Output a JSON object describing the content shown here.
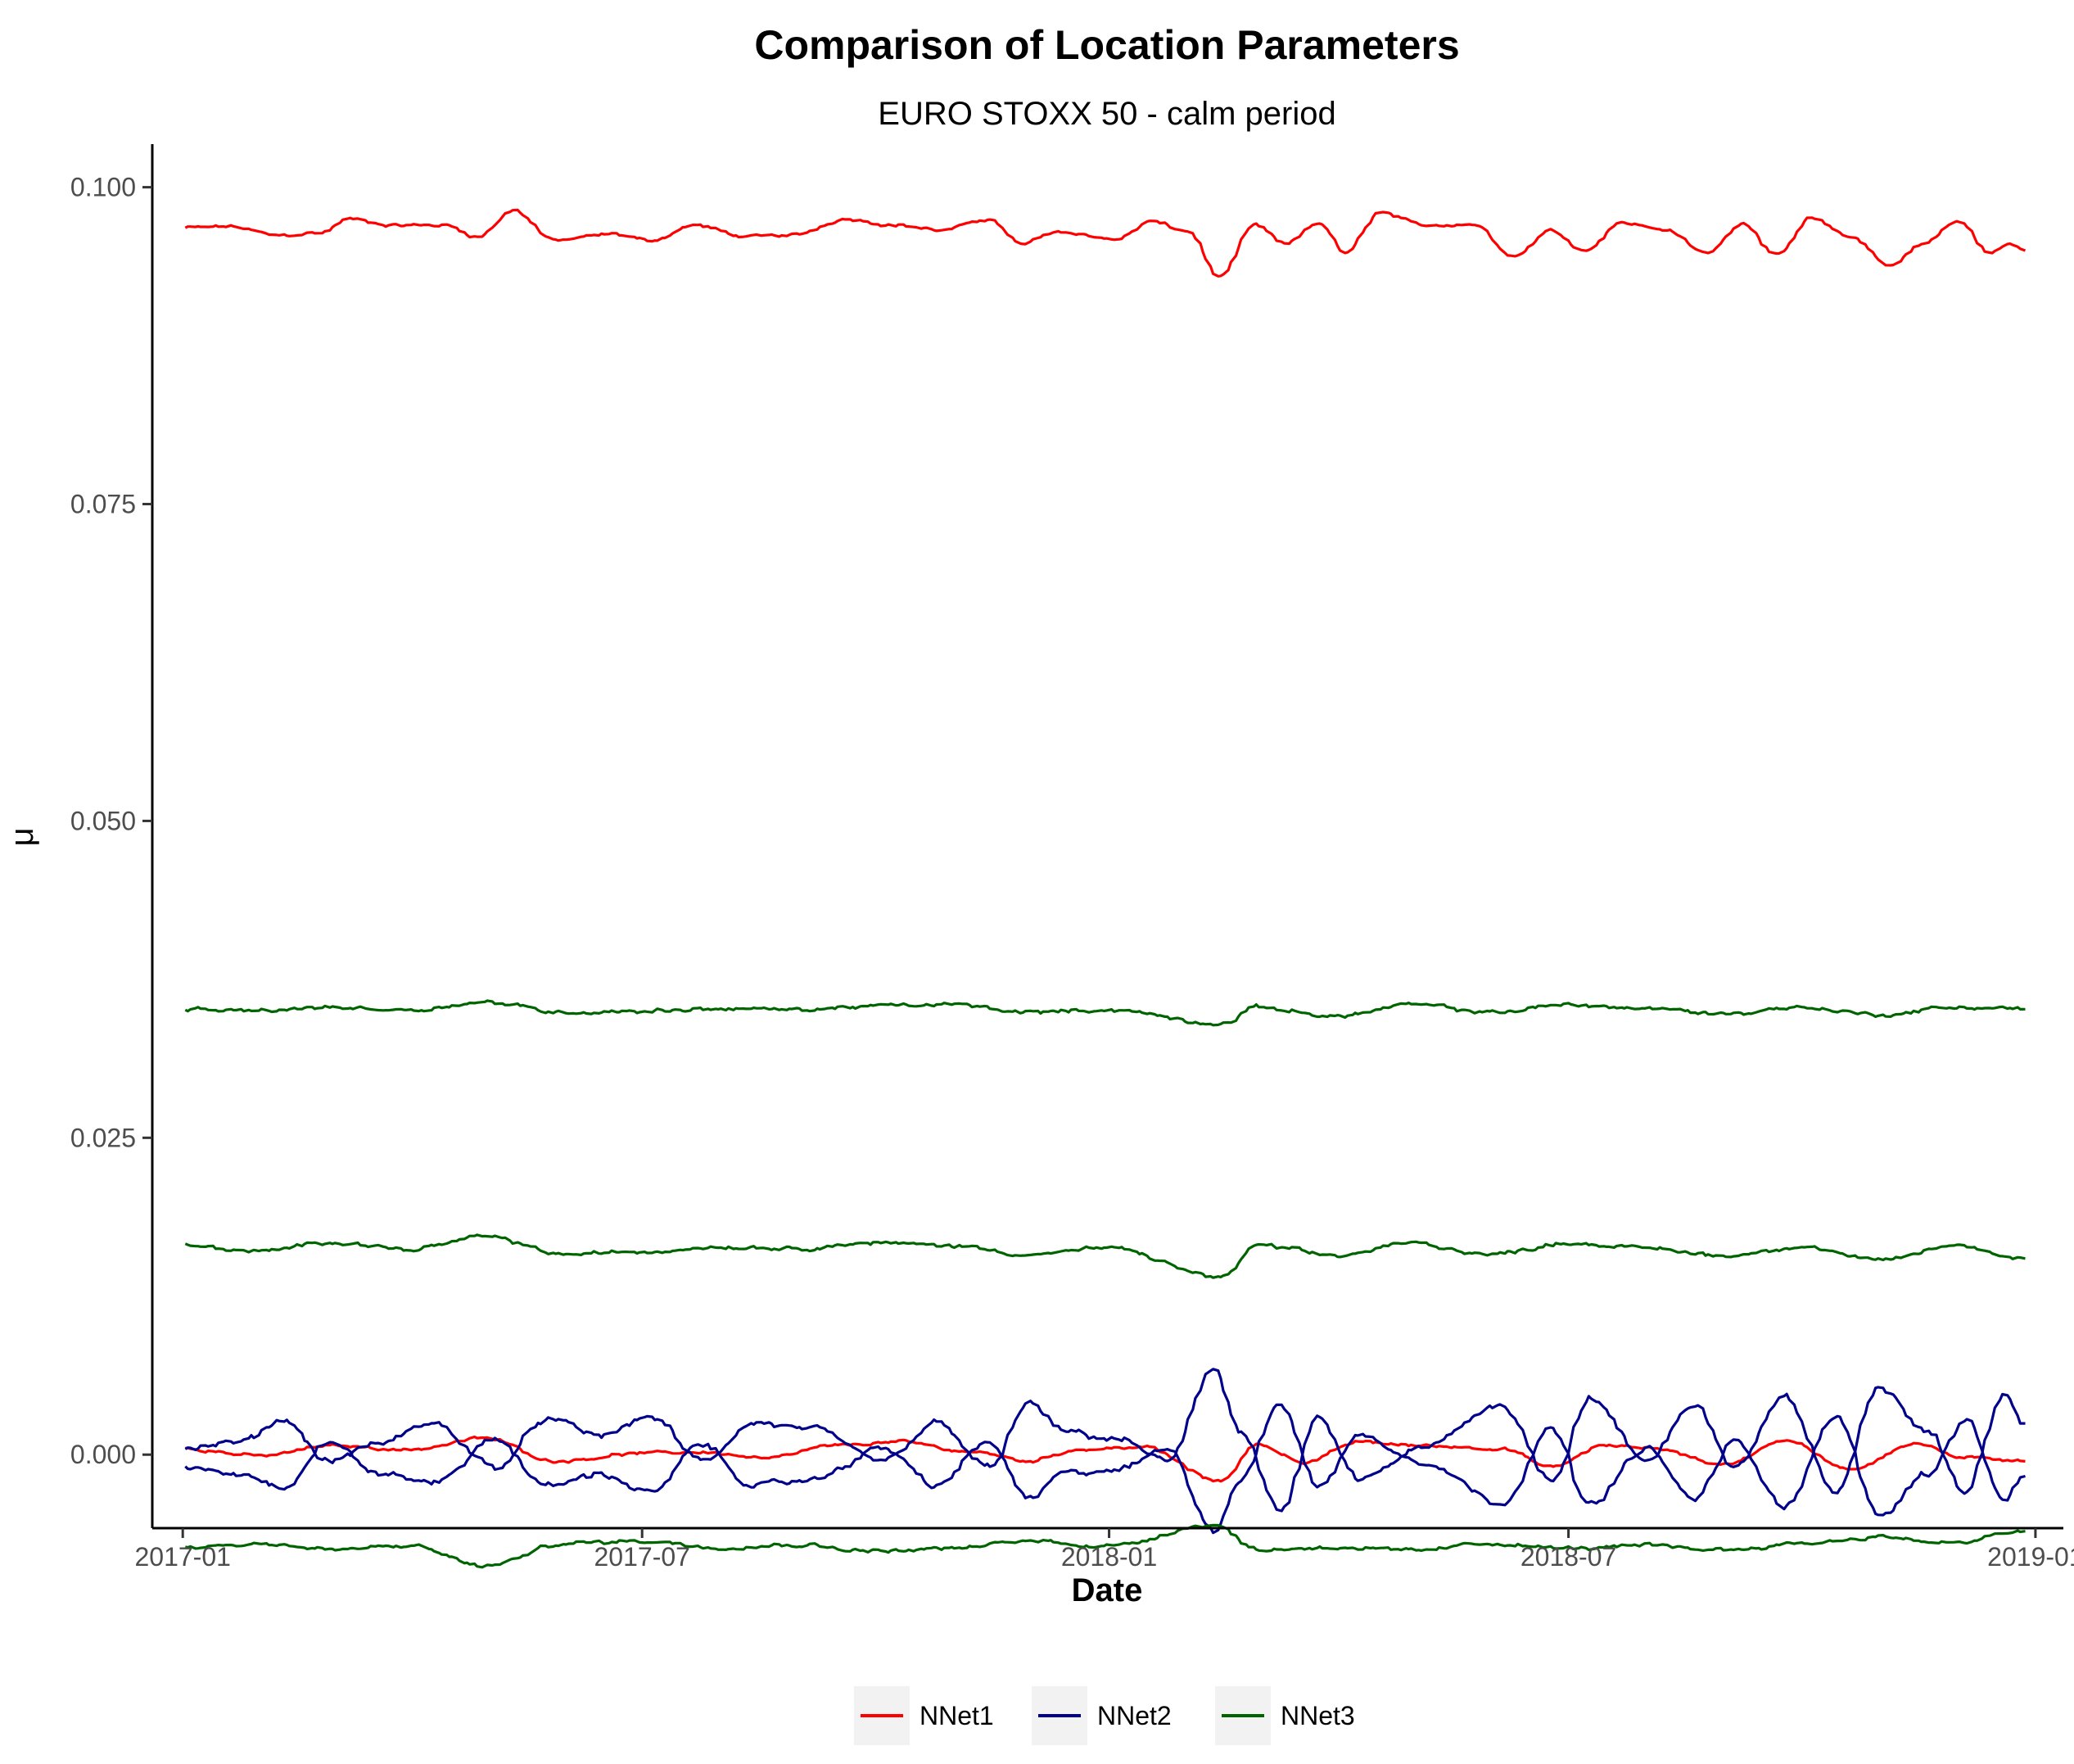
{
  "chart_data": {
    "type": "line",
    "title": "Comparison of Location Parameters",
    "subtitle": "EURO STOXX 50 - calm period",
    "xlabel": "Date",
    "ylabel": "μ",
    "xlim": [
      "2016-12-20",
      "2019-01-12"
    ],
    "ylim": [
      -0.0058,
      0.1034
    ],
    "x_ticks": [
      "2017-01",
      "2017-07",
      "2018-01",
      "2018-07",
      "2019-01"
    ],
    "y_ticks": [
      "0.000",
      "0.025",
      "0.050",
      "0.075",
      "0.100"
    ],
    "grid": false,
    "legend": {
      "position": "bottom"
    },
    "x_range": [
      "2017-01-02",
      "2018-12-28"
    ],
    "colors": {
      "NNet1": "#ff0000",
      "NNet2": "#00008b",
      "NNet3": "#006400"
    },
    "series": [
      {
        "name": "NNet1",
        "color": "#ff0000",
        "band": "upper",
        "values": [
          [
            "2017-01-02",
            0.0968
          ],
          [
            "2017-01-20",
            0.0969
          ],
          [
            "2017-02-08",
            0.0962
          ],
          [
            "2017-02-25",
            0.0964
          ],
          [
            "2017-03-08",
            0.0975
          ],
          [
            "2017-03-25",
            0.097
          ],
          [
            "2017-04-15",
            0.097
          ],
          [
            "2017-04-28",
            0.0961
          ],
          [
            "2017-05-12",
            0.0982
          ],
          [
            "2017-05-28",
            0.0958
          ],
          [
            "2017-06-20",
            0.0963
          ],
          [
            "2017-07-05",
            0.0958
          ],
          [
            "2017-07-22",
            0.097
          ],
          [
            "2017-08-12",
            0.0961
          ],
          [
            "2017-08-30",
            0.0962
          ],
          [
            "2017-09-20",
            0.0975
          ],
          [
            "2017-10-10",
            0.097
          ],
          [
            "2017-10-28",
            0.0966
          ],
          [
            "2017-11-15",
            0.0975
          ],
          [
            "2017-11-28",
            0.0955
          ],
          [
            "2017-12-12",
            0.0965
          ],
          [
            "2018-01-05",
            0.0959
          ],
          [
            "2018-01-18",
            0.0973
          ],
          [
            "2018-02-02",
            0.0965
          ],
          [
            "2018-02-14",
            0.0929
          ],
          [
            "2018-02-28",
            0.097
          ],
          [
            "2018-03-12",
            0.0955
          ],
          [
            "2018-03-25",
            0.0972
          ],
          [
            "2018-04-05",
            0.0948
          ],
          [
            "2018-04-18",
            0.098
          ],
          [
            "2018-05-05",
            0.097
          ],
          [
            "2018-05-25",
            0.0971
          ],
          [
            "2018-06-10",
            0.0946
          ],
          [
            "2018-06-25",
            0.0966
          ],
          [
            "2018-07-08",
            0.095
          ],
          [
            "2018-07-22",
            0.0972
          ],
          [
            "2018-08-08",
            0.0967
          ],
          [
            "2018-08-25",
            0.0948
          ],
          [
            "2018-09-08",
            0.0972
          ],
          [
            "2018-09-22",
            0.0946
          ],
          [
            "2018-10-05",
            0.0975
          ],
          [
            "2018-10-22",
            0.096
          ],
          [
            "2018-11-05",
            0.0938
          ],
          [
            "2018-11-18",
            0.0955
          ],
          [
            "2018-12-02",
            0.0973
          ],
          [
            "2018-12-15",
            0.0948
          ],
          [
            "2018-12-22",
            0.0955
          ],
          [
            "2018-12-28",
            0.0951
          ]
        ]
      },
      {
        "name": "NNet1",
        "color": "#ff0000",
        "band": "center",
        "values": [
          [
            "2017-01-02",
            0.0005
          ],
          [
            "2017-02-01",
            -0.0001
          ],
          [
            "2017-03-01",
            0.0007
          ],
          [
            "2017-04-01",
            0.0004
          ],
          [
            "2017-05-01",
            0.0013
          ],
          [
            "2017-05-28",
            -0.0005
          ],
          [
            "2017-07-01",
            0.0001
          ],
          [
            "2017-07-25",
            0.0002
          ],
          [
            "2017-08-20",
            -0.0003
          ],
          [
            "2017-09-15",
            0.0007
          ],
          [
            "2017-10-10",
            0.001
          ],
          [
            "2017-11-10",
            0.0002
          ],
          [
            "2017-12-01",
            -0.0005
          ],
          [
            "2017-12-20",
            0.0004
          ],
          [
            "2018-01-15",
            0.0006
          ],
          [
            "2018-02-14",
            -0.0021
          ],
          [
            "2018-03-01",
            0.0008
          ],
          [
            "2018-03-20",
            -0.0006
          ],
          [
            "2018-04-10",
            0.001
          ],
          [
            "2018-05-05",
            0.0007
          ],
          [
            "2018-06-05",
            0.0005
          ],
          [
            "2018-06-25",
            -0.001
          ],
          [
            "2018-07-15",
            0.0007
          ],
          [
            "2018-08-05",
            0.0005
          ],
          [
            "2018-09-01",
            -0.0008
          ],
          [
            "2018-09-25",
            0.0012
          ],
          [
            "2018-10-20",
            -0.0012
          ],
          [
            "2018-11-15",
            0.0009
          ],
          [
            "2018-12-05",
            -0.0003
          ],
          [
            "2018-12-28",
            -0.0004
          ]
        ]
      },
      {
        "name": "NNet2",
        "color": "#00008b",
        "band": "upper",
        "values": [
          [
            "2017-01-02",
            0.0005
          ],
          [
            "2017-01-25",
            0.001
          ],
          [
            "2017-02-10",
            0.0028
          ],
          [
            "2017-02-28",
            -0.0005
          ],
          [
            "2017-03-20",
            0.0009
          ],
          [
            "2017-04-10",
            0.0025
          ],
          [
            "2017-05-05",
            -0.001
          ],
          [
            "2017-05-25",
            0.0028
          ],
          [
            "2017-06-15",
            0.0015
          ],
          [
            "2017-07-05",
            0.003
          ],
          [
            "2017-07-25",
            -0.0005
          ],
          [
            "2017-08-15",
            0.0025
          ],
          [
            "2017-09-05",
            0.002
          ],
          [
            "2017-10-05",
            -0.0005
          ],
          [
            "2017-10-25",
            0.0025
          ],
          [
            "2017-11-15",
            -0.001
          ],
          [
            "2017-12-01",
            0.004
          ],
          [
            "2017-12-15",
            0.0018
          ],
          [
            "2018-01-05",
            0.0012
          ],
          [
            "2018-01-25",
            -0.0005
          ],
          [
            "2018-02-12",
            0.0068
          ],
          [
            "2018-02-22",
            0.002
          ],
          [
            "2018-03-10",
            -0.0045
          ],
          [
            "2018-03-25",
            0.0028
          ],
          [
            "2018-04-10",
            -0.002
          ],
          [
            "2018-05-05",
            0.0005
          ],
          [
            "2018-06-05",
            0.004
          ],
          [
            "2018-06-25",
            -0.002
          ],
          [
            "2018-07-10",
            0.0045
          ],
          [
            "2018-08-01",
            -0.0005
          ],
          [
            "2018-08-20",
            0.004
          ],
          [
            "2018-09-05",
            -0.001
          ],
          [
            "2018-09-25",
            0.0045
          ],
          [
            "2018-10-15",
            -0.003
          ],
          [
            "2018-11-01",
            0.0055
          ],
          [
            "2018-11-20",
            0.002
          ],
          [
            "2018-12-05",
            -0.003
          ],
          [
            "2018-12-20",
            0.0048
          ],
          [
            "2018-12-28",
            0.0022
          ]
        ]
      },
      {
        "name": "NNet2",
        "color": "#00008b",
        "band": "lower",
        "values": [
          [
            "2017-01-02",
            -0.001
          ],
          [
            "2017-01-25",
            -0.0015
          ],
          [
            "2017-02-10",
            -0.0025
          ],
          [
            "2017-02-28",
            0.001
          ],
          [
            "2017-03-20",
            -0.0015
          ],
          [
            "2017-04-10",
            -0.0022
          ],
          [
            "2017-05-05",
            0.0012
          ],
          [
            "2017-05-25",
            -0.0025
          ],
          [
            "2017-06-15",
            -0.0015
          ],
          [
            "2017-07-05",
            -0.003
          ],
          [
            "2017-07-25",
            0.0008
          ],
          [
            "2017-08-15",
            -0.0025
          ],
          [
            "2017-09-05",
            -0.002
          ],
          [
            "2017-10-05",
            0.0005
          ],
          [
            "2017-10-25",
            -0.0025
          ],
          [
            "2017-11-15",
            0.001
          ],
          [
            "2017-12-01",
            -0.0035
          ],
          [
            "2017-12-15",
            -0.0015
          ],
          [
            "2018-01-05",
            -0.0012
          ],
          [
            "2018-01-25",
            0.0005
          ],
          [
            "2018-02-12",
            -0.006
          ],
          [
            "2018-02-22",
            -0.002
          ],
          [
            "2018-03-10",
            0.004
          ],
          [
            "2018-03-25",
            -0.0025
          ],
          [
            "2018-04-10",
            0.0015
          ],
          [
            "2018-05-05",
            -0.0005
          ],
          [
            "2018-06-05",
            -0.0038
          ],
          [
            "2018-06-25",
            0.002
          ],
          [
            "2018-07-10",
            -0.004
          ],
          [
            "2018-08-01",
            0.0005
          ],
          [
            "2018-08-20",
            -0.0035
          ],
          [
            "2018-09-05",
            0.001
          ],
          [
            "2018-09-25",
            -0.004
          ],
          [
            "2018-10-15",
            0.003
          ],
          [
            "2018-11-01",
            -0.0048
          ],
          [
            "2018-11-20",
            -0.0015
          ],
          [
            "2018-12-05",
            0.0028
          ],
          [
            "2018-12-20",
            -0.0035
          ],
          [
            "2018-12-28",
            -0.0018
          ]
        ]
      },
      {
        "name": "NNet3",
        "color": "#006400",
        "band": "upper",
        "values": [
          [
            "2017-01-02",
            0.0351
          ],
          [
            "2017-02-01",
            0.035
          ],
          [
            "2017-03-01",
            0.0353
          ],
          [
            "2017-04-01",
            0.0351
          ],
          [
            "2017-05-01",
            0.0357
          ],
          [
            "2017-06-01",
            0.0349
          ],
          [
            "2017-07-01",
            0.035
          ],
          [
            "2017-08-01",
            0.0352
          ],
          [
            "2017-09-01",
            0.0351
          ],
          [
            "2017-10-01",
            0.0354
          ],
          [
            "2017-11-01",
            0.0355
          ],
          [
            "2017-12-01",
            0.0349
          ],
          [
            "2018-01-01",
            0.0351
          ],
          [
            "2018-02-15",
            0.034
          ],
          [
            "2018-03-01",
            0.0353
          ],
          [
            "2018-04-01",
            0.0346
          ],
          [
            "2018-05-01",
            0.0355
          ],
          [
            "2018-06-01",
            0.0349
          ],
          [
            "2018-07-01",
            0.0355
          ],
          [
            "2018-08-01",
            0.0352
          ],
          [
            "2018-09-01",
            0.0348
          ],
          [
            "2018-10-01",
            0.0353
          ],
          [
            "2018-11-01",
            0.0347
          ],
          [
            "2018-12-01",
            0.0353
          ],
          [
            "2018-12-28",
            0.0352
          ]
        ]
      },
      {
        "name": "NNet3",
        "color": "#006400",
        "band": "middle",
        "values": [
          [
            "2017-01-02",
            0.0165
          ],
          [
            "2017-02-01",
            0.016
          ],
          [
            "2017-03-01",
            0.0168
          ],
          [
            "2017-04-01",
            0.0162
          ],
          [
            "2017-05-01",
            0.0172
          ],
          [
            "2017-06-01",
            0.0158
          ],
          [
            "2017-07-01",
            0.016
          ],
          [
            "2017-08-01",
            0.0164
          ],
          [
            "2017-09-01",
            0.0163
          ],
          [
            "2017-10-01",
            0.0167
          ],
          [
            "2017-11-01",
            0.0165
          ],
          [
            "2017-12-01",
            0.0158
          ],
          [
            "2018-01-01",
            0.0163
          ],
          [
            "2018-02-15",
            0.014
          ],
          [
            "2018-03-01",
            0.0165
          ],
          [
            "2018-04-01",
            0.0157
          ],
          [
            "2018-05-01",
            0.0167
          ],
          [
            "2018-06-01",
            0.0158
          ],
          [
            "2018-07-01",
            0.0167
          ],
          [
            "2018-08-01",
            0.0163
          ],
          [
            "2018-09-01",
            0.0157
          ],
          [
            "2018-10-01",
            0.0164
          ],
          [
            "2018-11-01",
            0.0153
          ],
          [
            "2018-12-01",
            0.0165
          ],
          [
            "2018-12-28",
            0.0155
          ]
        ]
      },
      {
        "name": "NNet3",
        "color": "#006400",
        "band": "lower",
        "values": [
          [
            "2017-01-02",
            -0.0073
          ],
          [
            "2017-02-01",
            -0.007
          ],
          [
            "2017-03-01",
            -0.0075
          ],
          [
            "2017-04-01",
            -0.0072
          ],
          [
            "2017-05-01",
            -0.0088
          ],
          [
            "2017-06-01",
            -0.007
          ],
          [
            "2017-07-01",
            -0.0068
          ],
          [
            "2017-08-01",
            -0.0073
          ],
          [
            "2017-09-01",
            -0.0071
          ],
          [
            "2017-10-01",
            -0.0076
          ],
          [
            "2017-11-01",
            -0.0074
          ],
          [
            "2017-12-01",
            -0.0068
          ],
          [
            "2018-01-01",
            -0.0072
          ],
          [
            "2018-02-12",
            -0.0055
          ],
          [
            "2018-03-01",
            -0.0075
          ],
          [
            "2018-04-01",
            -0.0073
          ],
          [
            "2018-05-01",
            -0.0076
          ],
          [
            "2018-06-01",
            -0.007
          ],
          [
            "2018-07-01",
            -0.0074
          ],
          [
            "2018-08-01",
            -0.0072
          ],
          [
            "2018-09-01",
            -0.0075
          ],
          [
            "2018-10-01",
            -0.007
          ],
          [
            "2018-11-01",
            -0.0065
          ],
          [
            "2018-12-01",
            -0.007
          ],
          [
            "2018-12-28",
            -0.006
          ]
        ]
      }
    ],
    "legend_entries": [
      {
        "name": "NNet1",
        "color": "#ff0000"
      },
      {
        "name": "NNet2",
        "color": "#00008b"
      },
      {
        "name": "NNet3",
        "color": "#006400"
      }
    ]
  }
}
